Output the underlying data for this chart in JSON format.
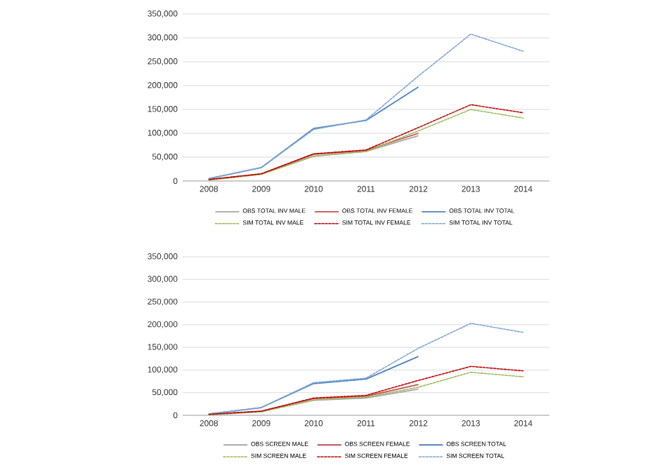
{
  "chart_data": [
    {
      "type": "line",
      "categories": [
        "2008",
        "2009",
        "2010",
        "2011",
        "2012",
        "2013",
        "2014"
      ],
      "ylim": [
        0,
        350000
      ],
      "yticks": [
        {
          "value": 0,
          "label": "0"
        },
        {
          "value": 50000,
          "label": "50,000"
        },
        {
          "value": 100000,
          "label": "100,000"
        },
        {
          "value": 150000,
          "label": "150,000"
        },
        {
          "value": 200000,
          "label": "200,000"
        },
        {
          "value": 250000,
          "label": "250,000"
        },
        {
          "value": 300000,
          "label": "300,000"
        },
        {
          "value": 350000,
          "label": "350,000"
        }
      ],
      "grid": "y",
      "legend": "bottom",
      "series": [
        {
          "name": "OBS TOTAL INV MALE",
          "color": "#a6a6a6",
          "line_style": "solid",
          "values": [
            2000,
            14000,
            52000,
            62000,
            95000,
            null,
            null
          ]
        },
        {
          "name": "OBS TOTAL INV FEMALE",
          "color": "#c0504d",
          "line_style": "solid",
          "values": [
            3000,
            15000,
            56000,
            64000,
            100000,
            null,
            null
          ]
        },
        {
          "name": "OBS TOTAL INV TOTAL",
          "color": "#4f81bd",
          "line_style": "solid",
          "values": [
            5000,
            28000,
            110000,
            127000,
            197000,
            null,
            null
          ]
        },
        {
          "name": "SIM TOTAL INV MALE",
          "color": "#9bbb59",
          "line_style": "dashed",
          "values": [
            2000,
            14000,
            52000,
            62000,
            105000,
            150000,
            132000
          ]
        },
        {
          "name": "SIM TOTAL INV FEMALE",
          "color": "#c00000",
          "line_style": "dashed",
          "values": [
            3000,
            15000,
            57000,
            65000,
            112000,
            160000,
            143000
          ]
        },
        {
          "name": "SIM TOTAL INV TOTAL",
          "color": "#7ea6d6",
          "line_style": "dashed",
          "values": [
            5000,
            28000,
            108000,
            128000,
            220000,
            308000,
            272000
          ]
        }
      ]
    },
    {
      "type": "line",
      "categories": [
        "2008",
        "2009",
        "2010",
        "2011",
        "2012",
        "2013",
        "2014"
      ],
      "ylim": [
        0,
        350000
      ],
      "yticks": [
        {
          "value": 0,
          "label": "0"
        },
        {
          "value": 50000,
          "label": "50,000"
        },
        {
          "value": 100000,
          "label": "100,000"
        },
        {
          "value": 150000,
          "label": "150,000"
        },
        {
          "value": 200000,
          "label": "200,000"
        },
        {
          "value": 250000,
          "label": "250,000"
        },
        {
          "value": 300000,
          "label": "300,000"
        },
        {
          "value": 350000,
          "label": "350,000"
        }
      ],
      "grid": "y",
      "legend": "bottom",
      "series": [
        {
          "name": "OBS SCREEN MALE",
          "color": "#a6a6a6",
          "line_style": "solid",
          "values": [
            1000,
            8000,
            33000,
            38000,
            58000,
            null,
            null
          ]
        },
        {
          "name": "OBS SCREEN FEMALE",
          "color": "#c0504d",
          "line_style": "solid",
          "values": [
            2000,
            9000,
            37000,
            42000,
            68000,
            null,
            null
          ]
        },
        {
          "name": "OBS SCREEN TOTAL",
          "color": "#4f81bd",
          "line_style": "solid",
          "values": [
            3000,
            17000,
            70000,
            80000,
            130000,
            null,
            null
          ]
        },
        {
          "name": "SIM SCREEN MALE",
          "color": "#9bbb59",
          "line_style": "dashed",
          "values": [
            1000,
            8000,
            34000,
            40000,
            62000,
            95000,
            85000
          ]
        },
        {
          "name": "SIM SCREEN FEMALE",
          "color": "#c00000",
          "line_style": "dashed",
          "values": [
            2000,
            9000,
            38000,
            44000,
            77000,
            108000,
            98000
          ]
        },
        {
          "name": "SIM SCREEN TOTAL",
          "color": "#7ea6d6",
          "line_style": "dashed",
          "values": [
            3000,
            17000,
            72000,
            82000,
            148000,
            203000,
            183000
          ]
        }
      ]
    }
  ]
}
